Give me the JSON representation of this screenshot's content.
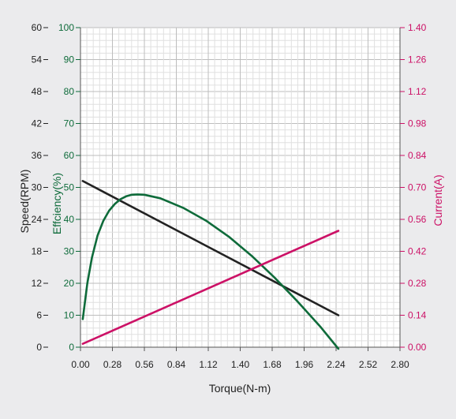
{
  "chart_data": {
    "type": "line",
    "xlabel": "Torque(N-m)",
    "x_ticks": [
      "0.00",
      "0.28",
      "0.56",
      "0.84",
      "1.12",
      "1.40",
      "1.68",
      "1.96",
      "2.24",
      "2.52",
      "2.80"
    ],
    "xlim": [
      0,
      2.8
    ],
    "axes": {
      "speed": {
        "label": "Speed(RPM)",
        "ticks": [
          "0",
          "6",
          "12",
          "18",
          "24",
          "30",
          "36",
          "42",
          "48",
          "54",
          "60"
        ],
        "range": [
          0,
          60
        ],
        "color": "#222222"
      },
      "efficiency": {
        "label": "Effciency(%)",
        "ticks": [
          "0",
          "10",
          "20",
          "30",
          "40",
          "50",
          "60",
          "70",
          "80",
          "90",
          "100"
        ],
        "range": [
          0,
          100
        ],
        "color": "#0e6b3a"
      },
      "current": {
        "label": "Current(A)",
        "ticks": [
          "0.00",
          "0.14",
          "0.28",
          "0.42",
          "0.56",
          "0.70",
          "0.84",
          "0.98",
          "1.12",
          "1.26",
          "1.40"
        ],
        "range": [
          0,
          1.4
        ],
        "color": "#cc1166"
      }
    },
    "grid": true,
    "series": [
      {
        "axis": "speed",
        "color": "#222222",
        "x": [
          0.02,
          2.26
        ],
        "y": [
          31.2,
          6.0
        ]
      },
      {
        "axis": "efficiency",
        "color": "#0e6b3a",
        "x": [
          0.02,
          0.06,
          0.1,
          0.15,
          0.2,
          0.25,
          0.3,
          0.35,
          0.4,
          0.45,
          0.5,
          0.56,
          0.7,
          0.9,
          1.1,
          1.3,
          1.5,
          1.7,
          1.9,
          2.1,
          2.26
        ],
        "y": [
          8.8,
          20,
          28,
          35,
          39.5,
          42.7,
          44.8,
          46.3,
          47.2,
          47.7,
          47.8,
          47.7,
          46.6,
          43.6,
          39.6,
          34.6,
          28.6,
          21.8,
          14.4,
          6.5,
          -0.5
        ]
      },
      {
        "axis": "current",
        "color": "#cc1166",
        "x": [
          0.02,
          2.26
        ],
        "y": [
          0.015,
          0.51
        ]
      }
    ]
  }
}
